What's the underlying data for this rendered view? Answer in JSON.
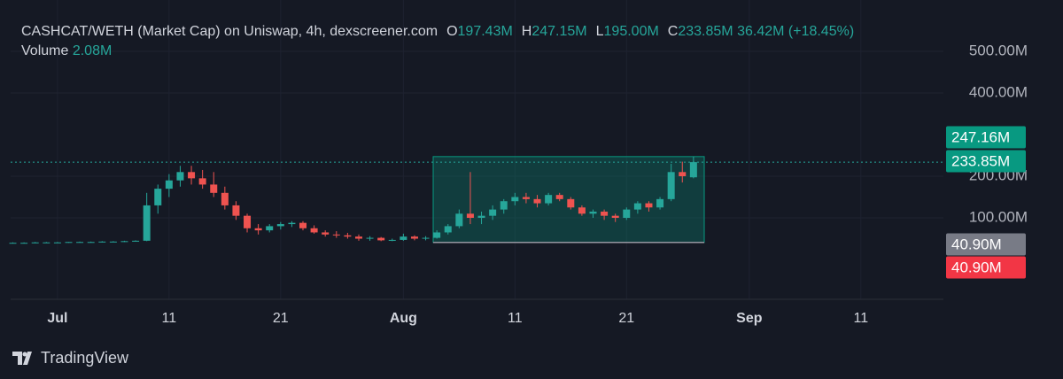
{
  "chart_data": {
    "type": "candlestick",
    "title": "CASHCAT/WETH (Market Cap) on Uniswap, 4h, dexscreener.com",
    "ohlc_legend": [
      {
        "key": "O",
        "value": "197.43M"
      },
      {
        "key": "H",
        "value": "247.15M"
      },
      {
        "key": "L",
        "value": "195.00M"
      },
      {
        "key": "C",
        "value": "233.85M"
      }
    ],
    "change": "36.42M (+18.45%)",
    "volume_label": "Volume",
    "volume": "2.08M",
    "up_color": "#26a69a",
    "down_color": "#ef5350",
    "x": [
      -4,
      -3,
      -2,
      -1,
      0,
      1,
      2,
      3,
      4,
      5,
      6,
      7,
      8,
      9,
      10,
      11,
      12,
      13,
      14,
      15,
      16,
      17,
      18,
      19,
      20,
      21,
      22,
      23,
      24,
      25,
      26,
      27,
      28,
      29,
      30,
      31,
      32,
      33,
      34,
      35,
      36,
      37,
      38,
      39,
      40,
      41,
      42,
      43,
      44,
      45,
      46,
      47,
      48,
      49,
      50,
      51,
      52,
      53,
      54,
      55,
      56,
      57
    ],
    "open": [
      40,
      40,
      40,
      41,
      41,
      41,
      42,
      42,
      42,
      43,
      43,
      44,
      45,
      130,
      170,
      190,
      210,
      195,
      180,
      160,
      130,
      105,
      75,
      70,
      80,
      85,
      88,
      75,
      65,
      60,
      58,
      55,
      50,
      52,
      46,
      47,
      55,
      50,
      52,
      65,
      80,
      110,
      100,
      105,
      120,
      140,
      150,
      145,
      135,
      155,
      145,
      125,
      110,
      115,
      105,
      100,
      120,
      135,
      125,
      145,
      210,
      197.43
    ],
    "high": [
      41,
      41,
      42,
      42,
      42,
      42,
      43,
      43,
      44,
      44,
      45,
      46,
      160,
      180,
      205,
      225,
      225,
      215,
      210,
      175,
      140,
      110,
      85,
      85,
      90,
      92,
      92,
      82,
      70,
      68,
      64,
      60,
      56,
      54,
      50,
      62,
      58,
      56,
      70,
      85,
      120,
      210,
      115,
      130,
      145,
      160,
      160,
      155,
      160,
      160,
      150,
      130,
      120,
      120,
      110,
      125,
      140,
      140,
      150,
      230,
      235,
      247.15
    ],
    "low": [
      39,
      39,
      39,
      40,
      40,
      40,
      41,
      41,
      41,
      42,
      42,
      43,
      44,
      110,
      150,
      175,
      180,
      170,
      150,
      120,
      95,
      65,
      60,
      65,
      72,
      78,
      70,
      62,
      55,
      52,
      50,
      45,
      45,
      44,
      44,
      45,
      46,
      46,
      50,
      60,
      75,
      85,
      85,
      95,
      110,
      130,
      135,
      125,
      130,
      140,
      120,
      105,
      100,
      95,
      90,
      95,
      110,
      115,
      120,
      140,
      185,
      195
    ],
    "close": [
      40,
      40,
      41,
      41,
      41,
      42,
      42,
      42,
      43,
      43,
      44,
      45,
      130,
      170,
      190,
      210,
      195,
      180,
      160,
      130,
      105,
      75,
      70,
      80,
      85,
      88,
      75,
      65,
      60,
      58,
      55,
      50,
      52,
      46,
      47,
      55,
      50,
      52,
      65,
      80,
      110,
      100,
      105,
      120,
      140,
      150,
      145,
      135,
      155,
      145,
      125,
      110,
      115,
      105,
      100,
      120,
      135,
      125,
      145,
      210,
      200,
      233.85
    ],
    "xlim": [
      -4.2,
      79.4
    ],
    "xticks": [
      {
        "value": 0,
        "label": "Jul"
      },
      {
        "value": 10,
        "label": "11"
      },
      {
        "value": 20,
        "label": "21"
      },
      {
        "value": 31,
        "label": "Aug"
      },
      {
        "value": 41,
        "label": "11"
      },
      {
        "value": 51,
        "label": "21"
      },
      {
        "value": 62,
        "label": "Sep"
      },
      {
        "value": 72,
        "label": "11"
      }
    ],
    "ylim": [
      -95.7,
      623.4
    ],
    "yticks": [
      {
        "value": 100,
        "label": "100.00M"
      },
      {
        "value": 200,
        "label": "200.00M"
      },
      {
        "value": 400,
        "label": "400.00M"
      },
      {
        "value": 500,
        "label": "500.00M"
      }
    ],
    "grid": true,
    "price_labels": [
      {
        "value": 247.16,
        "label": "247.16M",
        "color": "#089981"
      },
      {
        "value": 233.85,
        "label": "233.85M",
        "color": "#089981"
      },
      {
        "value": 40.9,
        "label": "40.90M",
        "color": "#787b86"
      },
      {
        "value": 40.9,
        "label": "40.90M",
        "color": "#f23645"
      }
    ]
  },
  "footer": {
    "brand": "TradingView"
  }
}
